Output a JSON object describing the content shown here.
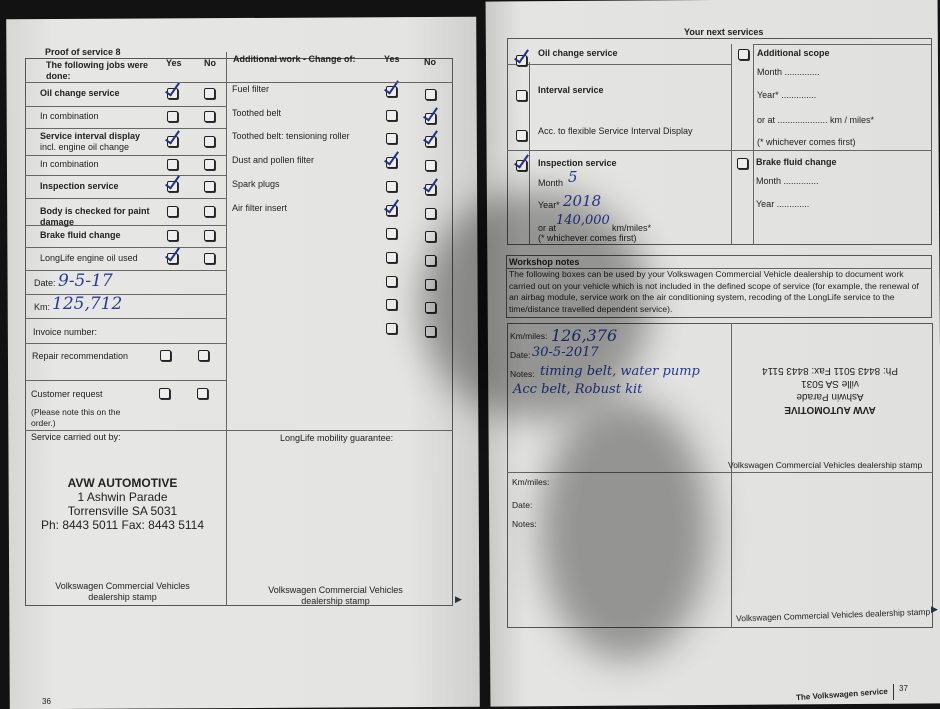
{
  "left_page": {
    "title": "Proof of service 8",
    "jobs_header": "The following jobs were done:",
    "yes": "Yes",
    "no": "No",
    "jobs": [
      {
        "label": "Oil change service",
        "bold": true,
        "yes": true,
        "no": false
      },
      {
        "label": "In combination",
        "bold": false,
        "yes": false,
        "no": false
      },
      {
        "label": "Service interval display",
        "sub": "incl. engine oil change",
        "bold": true,
        "yes": true,
        "no": false
      },
      {
        "label": "In combination",
        "bold": false,
        "yes": false,
        "no": false
      },
      {
        "label": "Inspection service",
        "bold": true,
        "yes": true,
        "no": false
      },
      {
        "label": "Body is checked for paint damage",
        "bold": true,
        "yes": false,
        "no": false
      },
      {
        "label": "Brake fluid change",
        "bold": true,
        "yes": false,
        "no": false
      },
      {
        "label": "LongLife engine oil used",
        "bold": false,
        "yes": true,
        "no": false
      }
    ],
    "date_label": "Date:",
    "date_value": "9-5-17",
    "km_label": "Km:",
    "km_value": "125,712",
    "invoice_label": "Invoice number:",
    "repair_label": "Repair recommendation",
    "repair_yes": false,
    "repair_no": false,
    "customer_label": "Customer request",
    "customer_note": "(Please note this on the order.)",
    "customer_yes": false,
    "customer_no": false,
    "additional_header": "Additional work - Change of:",
    "additional": [
      {
        "label": "Fuel filter",
        "yes": true,
        "no": false
      },
      {
        "label": "Toothed belt",
        "yes": false,
        "no": true
      },
      {
        "label": "Toothed belt: tensioning roller",
        "yes": false,
        "no": true
      },
      {
        "label": "Dust and pollen filter",
        "yes": true,
        "no": false
      },
      {
        "label": "Spark plugs",
        "yes": false,
        "no": true
      },
      {
        "label": "Air filter insert",
        "yes": true,
        "no": false
      },
      {
        "label": "",
        "yes": false,
        "no": false
      },
      {
        "label": "",
        "yes": false,
        "no": false
      },
      {
        "label": "",
        "yes": false,
        "no": false
      },
      {
        "label": "",
        "yes": false,
        "no": false
      },
      {
        "label": "",
        "yes": false,
        "no": false
      }
    ],
    "service_by_label": "Service carried out by:",
    "stamp": {
      "name": "AVW AUTOMOTIVE",
      "address": "1 Ashwin Parade",
      "city": "Torrensville  SA  5031",
      "phone": "Ph: 8443 5011  Fax: 8443 5114"
    },
    "stamp_caption": "Volkswagen Commercial Vehicles dealership stamp",
    "mobility_label": "LongLife mobility guarantee:",
    "mobility_caption": "Volkswagen Commercial Vehicles dealership stamp",
    "page_number": "36"
  },
  "right_page": {
    "next_title": "Your next services",
    "oil_change": {
      "label": "Oil change service",
      "checked": true
    },
    "interval": {
      "label": "Interval service",
      "checked": false
    },
    "flexible": {
      "label": "Acc. to flexible Service Interval Display",
      "checked": false
    },
    "inspection": {
      "label": "Inspection service",
      "checked": true,
      "month_label": "Month",
      "month": "5",
      "year_label": "Year*",
      "year": "2018",
      "km_label": "or at",
      "km": "140,000",
      "km_unit": "km/miles*",
      "note": "(* whichever comes first)"
    },
    "additional_scope": {
      "label": "Additional scope",
      "checked": false,
      "month": "Month ..............",
      "year": "Year* ..............",
      "km": "or at .................... km / miles*",
      "note": "(* whichever comes first)"
    },
    "brake": {
      "label": "Brake fluid change",
      "checked": false,
      "month": "Month ..............",
      "year": "Year ............."
    },
    "workshop_title": "Workshop notes",
    "workshop_text": "The following boxes can be used by your Volkswagen Commercial Vehicle dealership to document work carried out on your vehicle which is not included in the defined scope of service (for example, the renewal of an airbag module, service work on the air conditioning system, recoding of the LongLife service to the time/distance travelled dependent service).",
    "entry1": {
      "km_label": "Km/miles:",
      "km": "126,376",
      "date_label": "Date:",
      "date": "30-5-2017",
      "notes_label": "Notes:",
      "notes_line1": "timing belt, water pump",
      "notes_line2": "Acc belt, Robust kit"
    },
    "entry1_stamp": {
      "name": "AVW AUTOMOTIVE",
      "address": "Ashwin Parade",
      "city": "ville  SA 5031",
      "phone": "Ph: 8443 5011  Fax: 8443 5114"
    },
    "stamp_caption": "Volkswagen Commercial Vehicles dealership stamp",
    "entry2": {
      "km_label": "Km/miles:",
      "date_label": "Date:",
      "notes_label": "Notes:"
    },
    "footer": "The Volkswagen service",
    "page_number": "37"
  },
  "colors": {
    "ink": "#2a3a9a",
    "paper": "#e2e2e0",
    "background": "#121212"
  }
}
